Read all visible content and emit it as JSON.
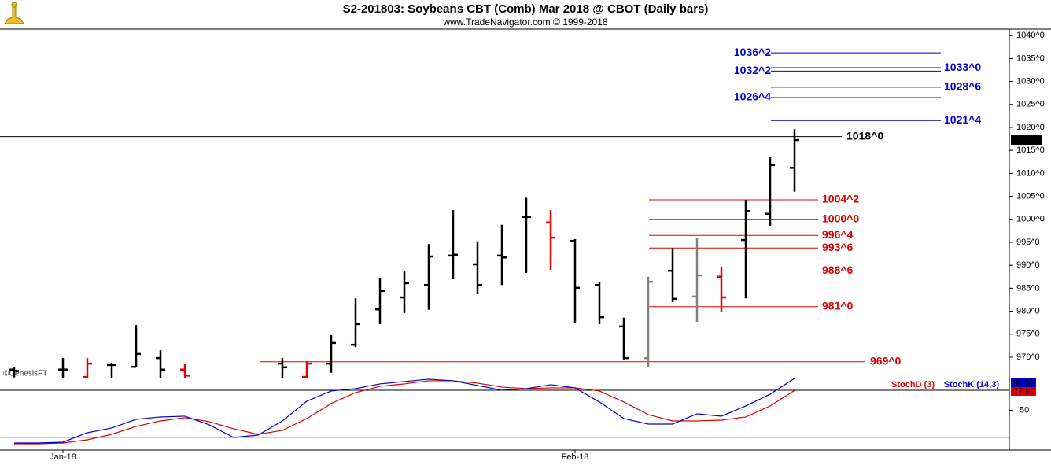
{
  "chart_data": [
    {
      "type": "ohlc",
      "title": "S2-201803:  Soybeans CBT (Comb) Mar 2018 @ CBOT  (Daily bars)",
      "subtitle": "www.TradeNavigator.com © 1999-2018",
      "watermark": "©GenesisFT",
      "categories": [
        null,
        null,
        "Jan-18",
        null,
        null,
        null,
        null,
        null,
        null,
        null,
        null,
        null,
        null,
        null,
        null,
        null,
        null,
        null,
        null,
        null,
        null,
        null,
        null,
        "Feb-18",
        null,
        null,
        null,
        null,
        null,
        null,
        null,
        null,
        null
      ],
      "open": [
        967.3,
        null,
        967.3,
        965.7,
        968.3,
        967.9,
        969.8,
        967.3,
        null,
        null,
        null,
        968.6,
        965.7,
        968.6,
        972.7,
        980.4,
        983.0,
        985.7,
        992.1,
        990.2,
        992.1,
        1000.5,
        999.3,
        995.3,
        985.7,
        976.7,
        969.8,
        988.8,
        983.2,
        987.5,
        995.5,
        1001.2,
        1011.2
      ],
      "high": [
        967.8,
        null,
        969.8,
        969.8,
        968.8,
        977.0,
        971.5,
        968.5,
        null,
        null,
        null,
        969.8,
        969.1,
        974.8,
        982.8,
        987.3,
        988.7,
        994.6,
        1002.0,
        995.2,
        998.8,
        1004.7,
        1002.0,
        995.7,
        986.3,
        978.6,
        987.5,
        993.8,
        996.0,
        989.7,
        1004.2,
        1013.6,
        1019.6
      ],
      "low": [
        965.6,
        null,
        965.4,
        965.4,
        965.4,
        967.8,
        965.4,
        965.4,
        null,
        null,
        null,
        965.4,
        965.4,
        966.6,
        972.2,
        977.2,
        979.6,
        980.3,
        987.1,
        983.7,
        985.7,
        988.3,
        989.0,
        977.5,
        977.2,
        969.5,
        967.8,
        982.0,
        977.7,
        979.8,
        982.8,
        998.6,
        1006.0
      ],
      "close": [
        967.0,
        null,
        967.3,
        968.6,
        968.3,
        970.7,
        967.3,
        966.0,
        null,
        null,
        null,
        967.8,
        968.6,
        973.1,
        977.2,
        984.4,
        986.1,
        991.9,
        992.3,
        985.7,
        991.7,
        1000.5,
        996.0,
        985.1,
        978.7,
        969.8,
        986.4,
        982.7,
        987.8,
        983.0,
        1001.8,
        1011.8,
        1017.25
      ],
      "colors": [
        "#000000",
        null,
        "#000000",
        "#e00000",
        "#000000",
        "#000000",
        "#000000",
        "#e00000",
        null,
        null,
        null,
        "#000000",
        "#e00000",
        "#000000",
        "#000000",
        "#000000",
        "#000000",
        "#000000",
        "#000000",
        "#000000",
        "#000000",
        "#000000",
        "#e00000",
        "#000000",
        "#000000",
        "#000000",
        "#808080",
        "#000000",
        "#808080",
        "#e00000",
        "#000000",
        "#000000",
        "#000000"
      ],
      "ylim": [
        962.8,
        1041.4
      ],
      "yticks": [
        {
          "value": 1040,
          "label": "1040^0"
        },
        {
          "value": 1035,
          "label": "1035^0"
        },
        {
          "value": 1030,
          "label": "1030^0"
        },
        {
          "value": 1025,
          "label": "1025^0"
        },
        {
          "value": 1020,
          "label": "1020^0"
        },
        {
          "value": 1015,
          "label": "1015^0"
        },
        {
          "value": 1010,
          "label": "1010^0"
        },
        {
          "value": 1005,
          "label": "1005^0"
        },
        {
          "value": 1000,
          "label": "1000^0"
        },
        {
          "value": 995,
          "label": "995^0"
        },
        {
          "value": 990,
          "label": "990^0"
        },
        {
          "value": 985,
          "label": "985^0"
        },
        {
          "value": 980,
          "label": "980^0"
        },
        {
          "value": 975,
          "label": "975^0"
        },
        {
          "value": 970,
          "label": "970^0"
        }
      ],
      "last_price": {
        "value": 1017.25,
        "label": "1017^2"
      },
      "levels": [
        {
          "value": 1036.25,
          "label": "1036^2",
          "color": "#0000cc"
        },
        {
          "value": 1033,
          "label": "1033^0",
          "color": "#0000cc"
        },
        {
          "value": 1032.25,
          "label": "1032^2",
          "color": "#0000cc"
        },
        {
          "value": 1028.75,
          "label": "1028^6",
          "color": "#0000cc"
        },
        {
          "value": 1026.5,
          "label": "1026^4",
          "color": "#0000cc"
        },
        {
          "value": 1021.5,
          "label": "1021^4",
          "color": "#0000cc"
        },
        {
          "value": 1018,
          "label": "1018^0",
          "color": "#000000"
        },
        {
          "value": 1004.25,
          "label": "1004^2",
          "color": "#e00000"
        },
        {
          "value": 1000,
          "label": "1000^0",
          "color": "#e00000"
        },
        {
          "value": 996.5,
          "label": "996^4",
          "color": "#e00000"
        },
        {
          "value": 993.75,
          "label": "993^6",
          "color": "#e00000"
        },
        {
          "value": 988.75,
          "label": "988^6",
          "color": "#e00000"
        },
        {
          "value": 981,
          "label": "981^0",
          "color": "#e00000"
        },
        {
          "value": 969,
          "label": "969^0",
          "color": "#e00000"
        }
      ]
    },
    {
      "type": "line",
      "ylim": [
        0,
        100
      ],
      "yticks": [
        50
      ],
      "series": [
        {
          "name": "StochD (3)",
          "color": "#e00000",
          "values": [
            3.3,
            3.3,
            4.4,
            8.8,
            16.5,
            27.5,
            35.2,
            39.6,
            34.1,
            24.2,
            16.5,
            22.0,
            38.5,
            59.4,
            74.8,
            83.6,
            86.9,
            91.3,
            91.3,
            88.0,
            82.5,
            80.3,
            81.4,
            81.4,
            77.0,
            61.6,
            44.0,
            35.2,
            35.2,
            36.3,
            40.7,
            56.1,
            77.8
          ],
          "value_labels": [
            null,
            null,
            null,
            null,
            null,
            null,
            null,
            null,
            null,
            null,
            null,
            null,
            null,
            null,
            null,
            null,
            null,
            null,
            null,
            null,
            null,
            null,
            null,
            null,
            null,
            null,
            null,
            null,
            null,
            null,
            null,
            null,
            "77.80"
          ]
        },
        {
          "name": "StochK (14,3)",
          "color": "#0000cc",
          "values": [
            4.4,
            4.4,
            5.5,
            18.7,
            25.3,
            37.4,
            40.7,
            41.8,
            29.7,
            12.1,
            15.4,
            35.2,
            62.7,
            77.0,
            80.3,
            86.9,
            90.2,
            93.5,
            91.3,
            84.7,
            78.1,
            80.3,
            85.8,
            81.4,
            61.6,
            38.5,
            30.8,
            30.8,
            45.1,
            41.8,
            56.1,
            72.6,
            94.57
          ],
          "value_labels": [
            null,
            null,
            null,
            null,
            null,
            null,
            null,
            null,
            null,
            null,
            null,
            null,
            null,
            null,
            null,
            null,
            null,
            null,
            null,
            null,
            null,
            null,
            null,
            null,
            null,
            null,
            null,
            null,
            null,
            null,
            null,
            null,
            "94.57"
          ]
        }
      ]
    }
  ]
}
